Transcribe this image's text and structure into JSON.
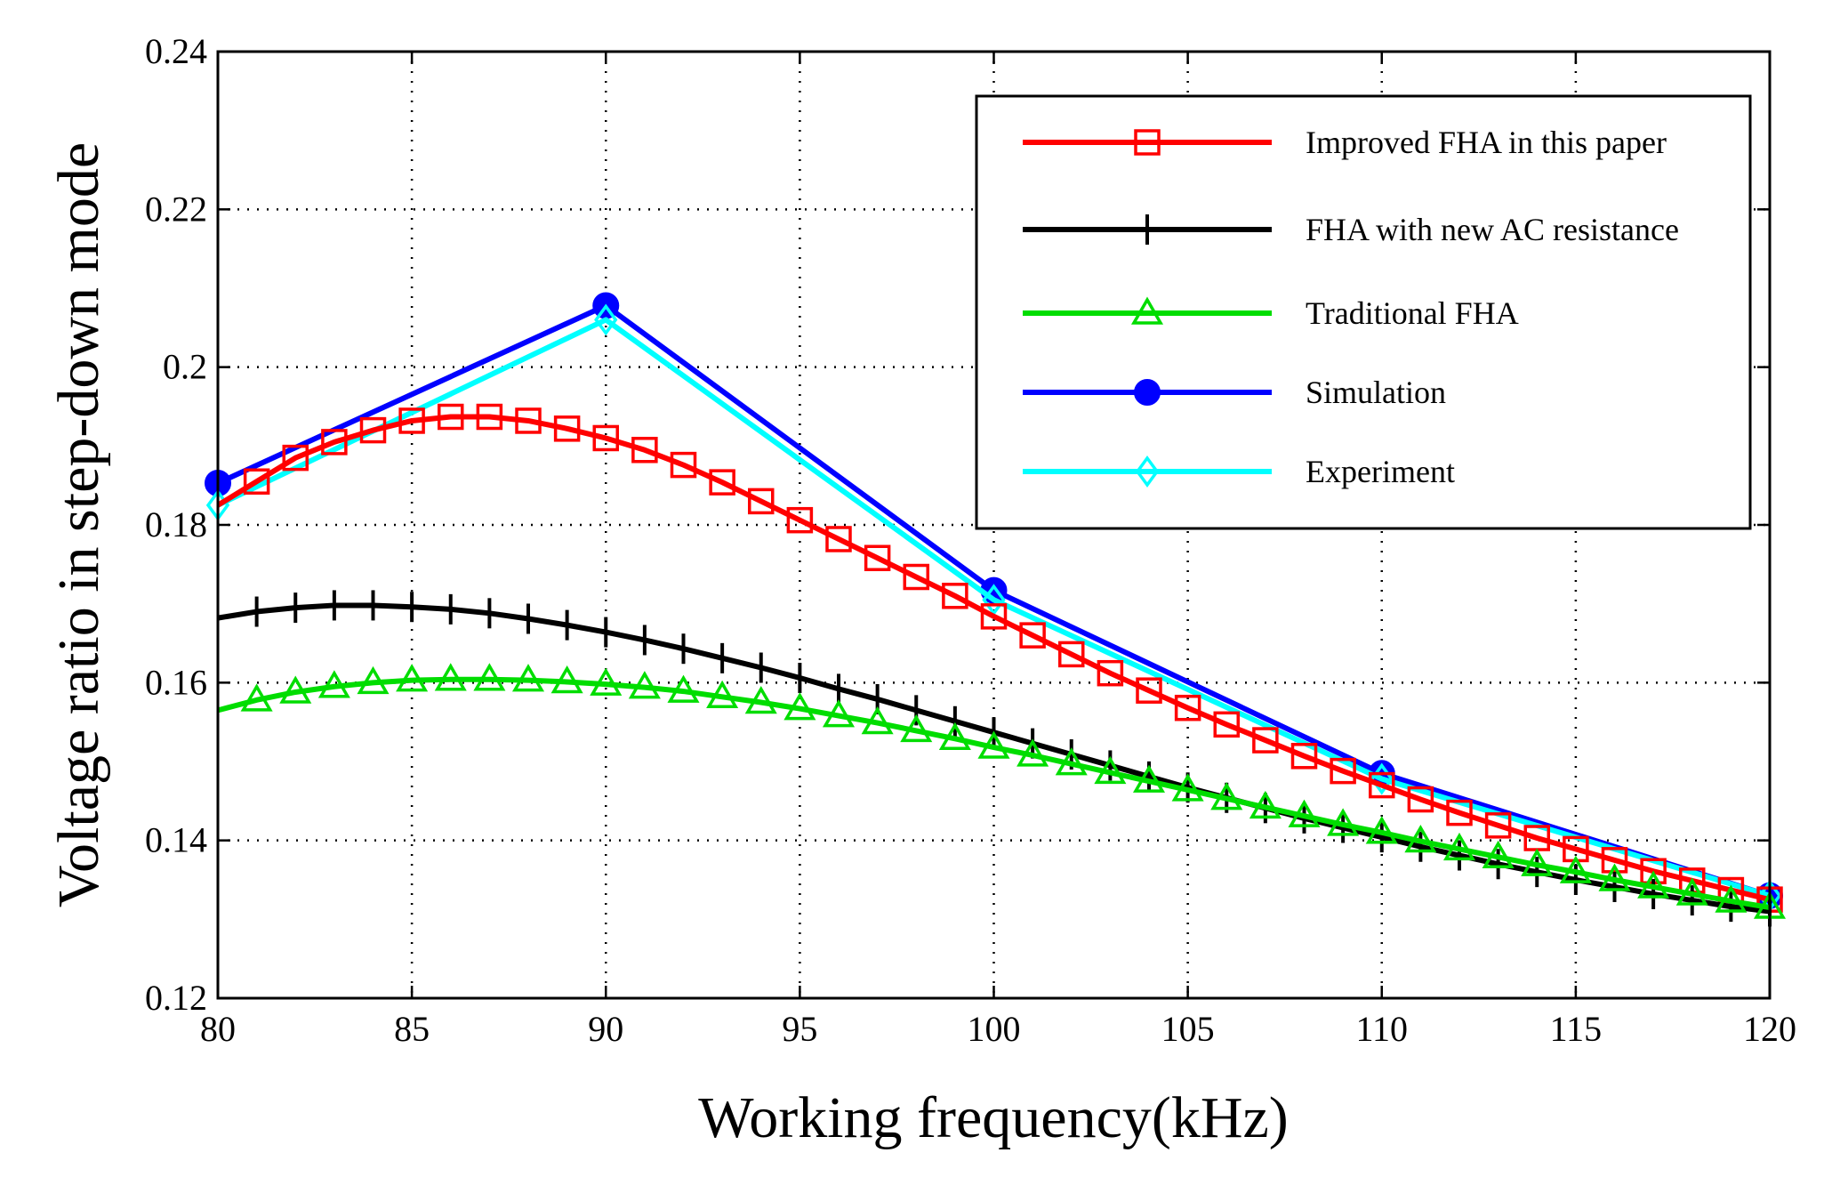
{
  "chart_data": {
    "type": "line",
    "title": "",
    "xlabel": "Working frequency(kHz)",
    "ylabel": "Voltage ratio in step-down mode",
    "xlim": [
      80,
      120
    ],
    "ylim": [
      0.12,
      0.24
    ],
    "xticks": [
      80,
      85,
      90,
      95,
      100,
      105,
      110,
      115,
      120
    ],
    "yticks": [
      0.12,
      0.14,
      0.16,
      0.18,
      0.2,
      0.22,
      0.24
    ],
    "xtick_labels": [
      "80",
      "85",
      "90",
      "95",
      "100",
      "105",
      "110",
      "115",
      "120"
    ],
    "ytick_labels": [
      "0.12",
      "0.14",
      "0.16",
      "0.18",
      "0.2",
      "0.22",
      "0.24"
    ],
    "grid": true,
    "legend_position": "top-right",
    "series": [
      {
        "name": "Improved FHA in this paper",
        "color": "#ff0000",
        "marker": "square",
        "x": [
          80,
          81,
          82,
          83,
          84,
          85,
          86,
          87,
          88,
          89,
          90,
          91,
          92,
          93,
          94,
          95,
          96,
          97,
          98,
          99,
          100,
          101,
          102,
          103,
          104,
          105,
          106,
          107,
          108,
          109,
          110,
          111,
          112,
          113,
          114,
          115,
          116,
          117,
          118,
          119,
          120
        ],
        "y": [
          0.1825,
          0.1855,
          0.1885,
          0.1905,
          0.192,
          0.1932,
          0.1937,
          0.1937,
          0.1932,
          0.1922,
          0.191,
          0.1895,
          0.1876,
          0.1854,
          0.183,
          0.1806,
          0.1782,
          0.1758,
          0.1734,
          0.171,
          0.1684,
          0.166,
          0.1636,
          0.1612,
          0.159,
          0.1568,
          0.1547,
          0.1527,
          0.1507,
          0.1488,
          0.147,
          0.1452,
          0.1435,
          0.1419,
          0.1403,
          0.1389,
          0.1375,
          0.1361,
          0.1349,
          0.1337,
          0.1325
        ]
      },
      {
        "name": "FHA with new AC resistance",
        "color": "#000000",
        "marker": "plus",
        "x": [
          80,
          81,
          82,
          83,
          84,
          85,
          86,
          87,
          88,
          89,
          90,
          91,
          92,
          93,
          94,
          95,
          96,
          97,
          98,
          99,
          100,
          101,
          102,
          103,
          104,
          105,
          106,
          107,
          108,
          109,
          110,
          111,
          112,
          113,
          114,
          115,
          116,
          117,
          118,
          119,
          120
        ],
        "y": [
          0.1682,
          0.169,
          0.1695,
          0.1698,
          0.1698,
          0.1696,
          0.1693,
          0.1688,
          0.1681,
          0.1673,
          0.1664,
          0.1654,
          0.1643,
          0.1631,
          0.1619,
          0.1606,
          0.1592,
          0.1579,
          0.1565,
          0.1551,
          0.1537,
          0.1523,
          0.1509,
          0.1495,
          0.1481,
          0.1467,
          0.1454,
          0.1441,
          0.1428,
          0.1416,
          0.1404,
          0.1392,
          0.1381,
          0.137,
          0.136,
          0.135,
          0.1341,
          0.1332,
          0.1324,
          0.1316,
          0.131
        ]
      },
      {
        "name": "Traditional FHA",
        "color": "#00dd00",
        "marker": "triangle",
        "x": [
          80,
          81,
          82,
          83,
          84,
          85,
          86,
          87,
          88,
          89,
          90,
          91,
          92,
          93,
          94,
          95,
          96,
          97,
          98,
          99,
          100,
          101,
          102,
          103,
          104,
          105,
          106,
          107,
          108,
          109,
          110,
          111,
          112,
          113,
          114,
          115,
          116,
          117,
          118,
          119,
          120
        ],
        "y": [
          0.1565,
          0.1578,
          0.1588,
          0.1595,
          0.16,
          0.1603,
          0.1604,
          0.1604,
          0.1603,
          0.1601,
          0.1598,
          0.1594,
          0.1589,
          0.1582,
          0.1575,
          0.1567,
          0.1558,
          0.1549,
          0.1539,
          0.1529,
          0.1518,
          0.1508,
          0.1497,
          0.1486,
          0.1475,
          0.1464,
          0.1453,
          0.1442,
          0.1431,
          0.142,
          0.141,
          0.1399,
          0.1389,
          0.1379,
          0.1369,
          0.136,
          0.135,
          0.1341,
          0.1332,
          0.1323,
          0.1315
        ]
      },
      {
        "name": "Simulation",
        "color": "#0000ff",
        "marker": "circle",
        "x": [
          80,
          90,
          100,
          110,
          120
        ],
        "y": [
          0.1853,
          0.2078,
          0.1717,
          0.1485,
          0.133
        ]
      },
      {
        "name": "Experiment",
        "color": "#00ffff",
        "marker": "diamond",
        "x": [
          80,
          90,
          100,
          110,
          120
        ],
        "y": [
          0.1825,
          0.206,
          0.1705,
          0.1478,
          0.133
        ]
      }
    ]
  }
}
